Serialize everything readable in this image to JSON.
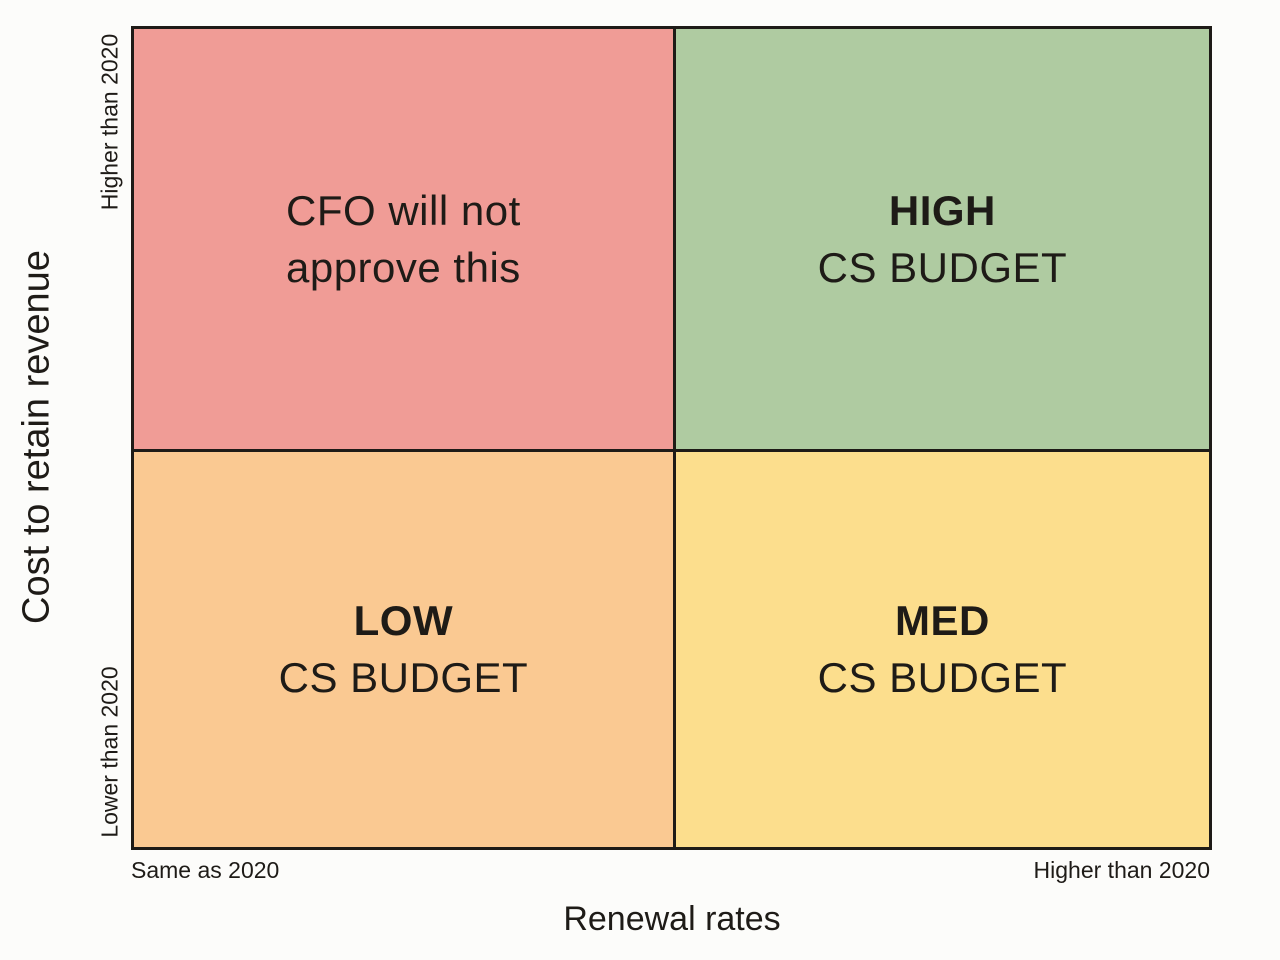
{
  "chart_data": {
    "type": "quadrant_matrix",
    "x_axis": {
      "title": "Renewal rates",
      "min_label": "Same as 2020",
      "max_label": "Higher than 2020"
    },
    "y_axis": {
      "title": "Cost to retain revenue",
      "min_label": "Lower than 2020",
      "max_label": "Higher than 2020"
    },
    "quadrants": {
      "top_left": {
        "lines": [
          "CFO will not",
          "approve this"
        ],
        "color": "#F09C96"
      },
      "top_right": {
        "heading": "HIGH",
        "subheading": "CS BUDGET",
        "color": "#AFCBA1"
      },
      "bottom_left": {
        "heading": "LOW",
        "subheading": "CS BUDGET",
        "color": "#FAC992"
      },
      "bottom_right": {
        "heading": "MED",
        "subheading": "CS BUDGET",
        "color": "#FCDE8D"
      }
    },
    "colors": {
      "border": "#1E1B17",
      "text": "#1E1B17",
      "background": "#FCFCFA"
    }
  }
}
